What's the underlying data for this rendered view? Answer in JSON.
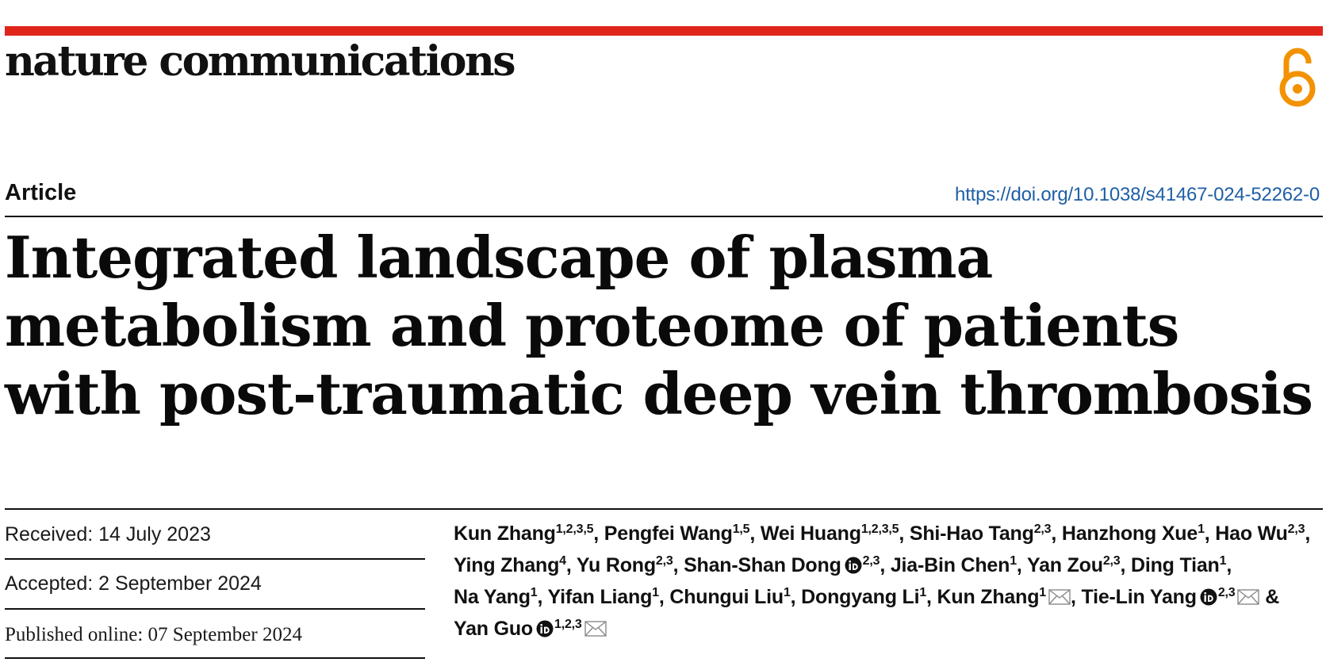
{
  "journal": {
    "name": "nature communications",
    "accent_color": "#e0251b",
    "open_access_icon": "open-access-lock-icon",
    "open_access_color": "#f39200"
  },
  "article": {
    "type": "Article",
    "doi": "https://doi.org/10.1038/s41467-024-52262-0",
    "title": "Integrated landscape of plasma metabolism and proteome of patients with post-traumatic deep vein thrombosis"
  },
  "dates": {
    "received": "Received: 14 July 2023",
    "accepted": "Accepted: 2 September 2024",
    "published": "Published online: 07 September 2024"
  },
  "authors": [
    {
      "name": "Kun Zhang",
      "aff": "1,2,3,5",
      "orcid": false,
      "corresponding": false
    },
    {
      "name": "Pengfei Wang",
      "aff": "1,5",
      "orcid": false,
      "corresponding": false
    },
    {
      "name": "Wei Huang",
      "aff": "1,2,3,5",
      "orcid": false,
      "corresponding": false
    },
    {
      "name": "Shi-Hao Tang",
      "aff": "2,3",
      "orcid": false,
      "corresponding": false
    },
    {
      "name": "Hanzhong Xue",
      "aff": "1",
      "orcid": false,
      "corresponding": false
    },
    {
      "name": "Hao Wu",
      "aff": "2,3",
      "orcid": false,
      "corresponding": false
    },
    {
      "name": "Ying Zhang",
      "aff": "4",
      "orcid": false,
      "corresponding": false
    },
    {
      "name": "Yu Rong",
      "aff": "2,3",
      "orcid": false,
      "corresponding": false
    },
    {
      "name": "Shan-Shan Dong",
      "aff": "2,3",
      "orcid": true,
      "corresponding": false
    },
    {
      "name": "Jia-Bin Chen",
      "aff": "1",
      "orcid": false,
      "corresponding": false
    },
    {
      "name": "Yan Zou",
      "aff": "2,3",
      "orcid": false,
      "corresponding": false
    },
    {
      "name": "Ding Tian",
      "aff": "1",
      "orcid": false,
      "corresponding": false
    },
    {
      "name": "Na Yang",
      "aff": "1",
      "orcid": false,
      "corresponding": false
    },
    {
      "name": "Yifan Liang",
      "aff": "1",
      "orcid": false,
      "corresponding": false
    },
    {
      "name": "Chungui Liu",
      "aff": "1",
      "orcid": false,
      "corresponding": false
    },
    {
      "name": "Dongyang Li",
      "aff": "1",
      "orcid": false,
      "corresponding": false
    },
    {
      "name": "Kun Zhang",
      "aff": "1",
      "orcid": false,
      "corresponding": true
    },
    {
      "name": "Tie-Lin Yang",
      "aff": "2,3",
      "orcid": true,
      "corresponding": true
    },
    {
      "name": "Yan Guo",
      "aff": "1,2,3",
      "orcid": true,
      "corresponding": true
    }
  ],
  "author_separators": {
    "between": ", ",
    "before_last": " & "
  },
  "icons": {
    "orcid": "orcid-icon",
    "corresponding": "envelope-icon"
  }
}
